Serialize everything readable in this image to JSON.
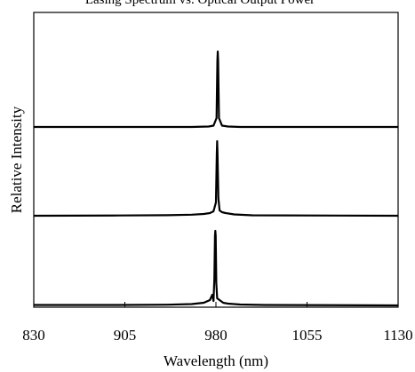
{
  "chart_data": {
    "type": "line",
    "title": "Lasing Spectrum vs. Optical Output Power",
    "xlabel": "Wavelength (nm)",
    "ylabel": "Relative Intensity",
    "xlim": [
      830,
      1130
    ],
    "xticks": [
      830,
      905,
      980,
      1055,
      1130
    ],
    "xtick_labels": [
      "830",
      "905",
      "980",
      "1055",
      "1130"
    ],
    "grid": false,
    "legend": "none",
    "stacked_offsets": [
      2.0,
      1.0,
      0.0
    ],
    "series": [
      {
        "peak_nm": 981.5,
        "points": [
          [
            830,
            0
          ],
          [
            960,
            0
          ],
          [
            974,
            0.005
          ],
          [
            978,
            0.015
          ],
          [
            980.5,
            0.1
          ],
          [
            981.2,
            0.75
          ],
          [
            981.5,
            0.85
          ],
          [
            981.8,
            0.75
          ],
          [
            982.5,
            0.1
          ],
          [
            985,
            0.015
          ],
          [
            990,
            0.005
          ],
          [
            1000,
            0
          ],
          [
            1130,
            0
          ]
        ]
      },
      {
        "peak_nm": 981.0,
        "points": [
          [
            830,
            0
          ],
          [
            900,
            0.003
          ],
          [
            940,
            0.006
          ],
          [
            960,
            0.012
          ],
          [
            970,
            0.02
          ],
          [
            975,
            0.03
          ],
          [
            978,
            0.05
          ],
          [
            980,
            0.15
          ],
          [
            980.7,
            0.7
          ],
          [
            981,
            0.84
          ],
          [
            981.3,
            0.7
          ],
          [
            982,
            0.2
          ],
          [
            983,
            0.06
          ],
          [
            985,
            0.04
          ],
          [
            988,
            0.03
          ],
          [
            995,
            0.015
          ],
          [
            1010,
            0.005
          ],
          [
            1130,
            0
          ]
        ]
      },
      {
        "peak_nm": 979.5,
        "points": [
          [
            830,
            0.005
          ],
          [
            900,
            0.005
          ],
          [
            940,
            0.008
          ],
          [
            960,
            0.015
          ],
          [
            970,
            0.03
          ],
          [
            975,
            0.06
          ],
          [
            977,
            0.12
          ],
          [
            978,
            0.05
          ],
          [
            978.7,
            0.3
          ],
          [
            979.2,
            0.78
          ],
          [
            979.5,
            0.84
          ],
          [
            979.8,
            0.78
          ],
          [
            980.3,
            0.25
          ],
          [
            981,
            0.08
          ],
          [
            983,
            0.06
          ],
          [
            986,
            0.03
          ],
          [
            990,
            0.02
          ],
          [
            1000,
            0.01
          ],
          [
            1020,
            0.005
          ],
          [
            1130,
            0
          ]
        ]
      }
    ]
  }
}
